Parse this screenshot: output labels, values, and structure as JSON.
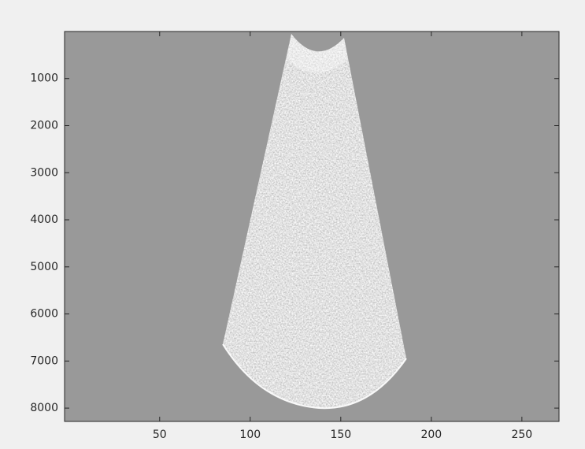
{
  "chart_data": {
    "type": "image",
    "xlim": [
      -2.5,
      270.5
    ],
    "xticks": [
      50,
      100,
      150,
      200,
      250
    ],
    "ylim": [
      0.5,
      8283
    ],
    "yticks": [
      1000,
      2000,
      3000,
      4000,
      5000,
      6000,
      7000,
      8000
    ],
    "y_reversed": true,
    "axes_color": "#999999"
  }
}
